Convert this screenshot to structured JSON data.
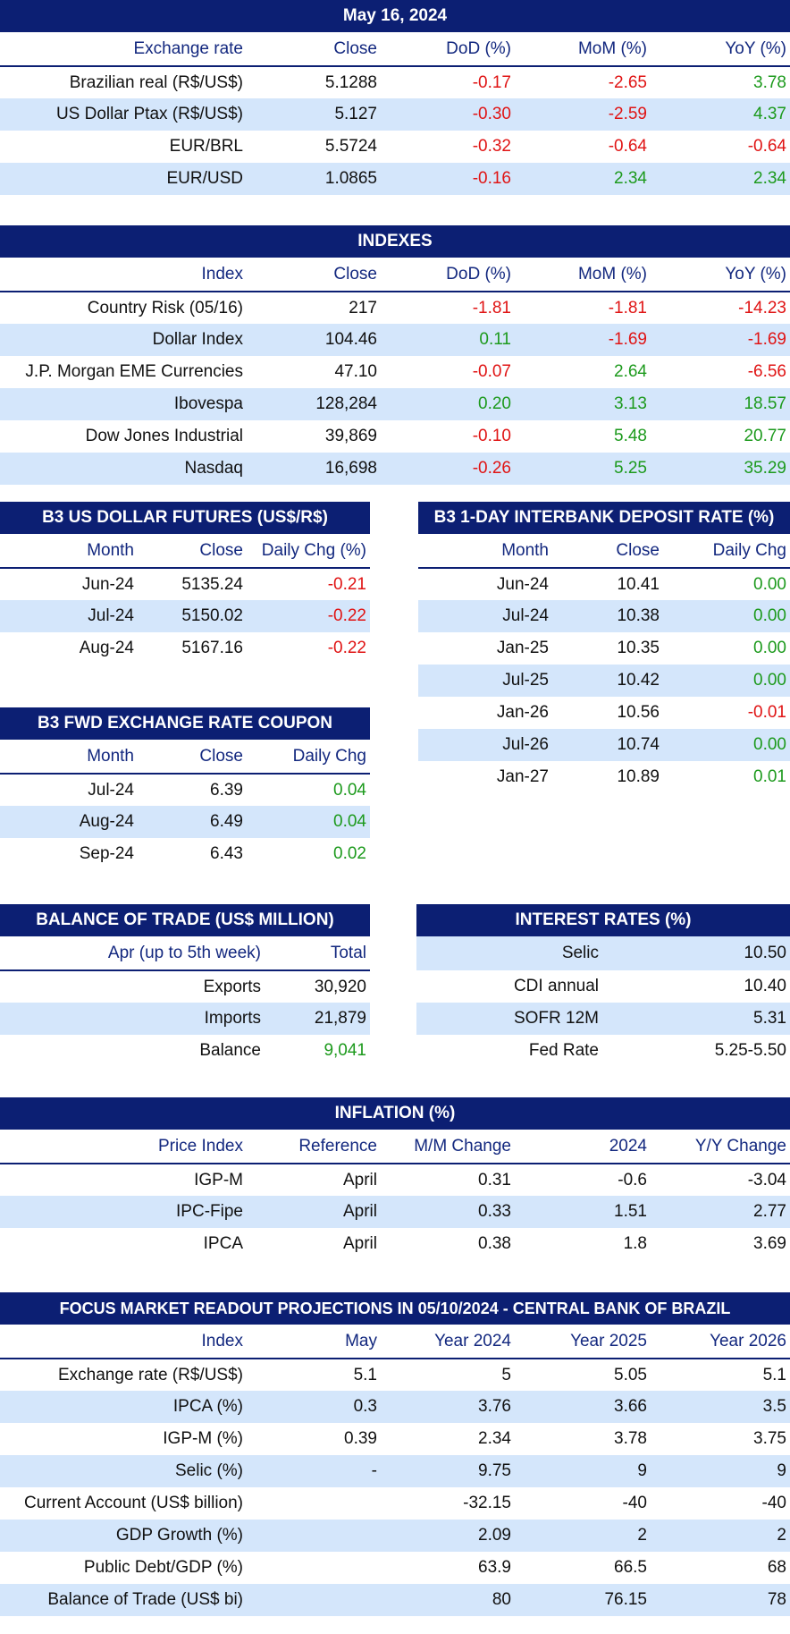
{
  "exchange": {
    "title": "May 16, 2024",
    "headers": [
      "Exchange rate",
      "Close",
      "DoD (%)",
      "MoM (%)",
      "YoY (%)"
    ],
    "rows": [
      {
        "label": "Brazilian real (R$/US$)",
        "close": "5.1288",
        "dod": "-0.17",
        "mom": "-2.65",
        "yoy": "3.78"
      },
      {
        "label": "US Dollar Ptax (R$/US$)",
        "close": "5.127",
        "dod": "-0.30",
        "mom": "-2.59",
        "yoy": "4.37"
      },
      {
        "label": "EUR/BRL",
        "close": "5.5724",
        "dod": "-0.32",
        "mom": "-0.64",
        "yoy": "-0.64"
      },
      {
        "label": "EUR/USD",
        "close": "1.0865",
        "dod": "-0.16",
        "mom": "2.34",
        "yoy": "2.34"
      }
    ]
  },
  "indexes": {
    "title": "INDEXES",
    "headers": [
      "Index",
      "Close",
      "DoD (%)",
      "MoM (%)",
      "YoY (%)"
    ],
    "rows": [
      {
        "label": "Country Risk (05/16)",
        "close": "217",
        "dod": "-1.81",
        "mom": "-1.81",
        "yoy": "-14.23"
      },
      {
        "label": "Dollar Index",
        "close": "104.46",
        "dod": "0.11",
        "mom": "-1.69",
        "yoy": "-1.69"
      },
      {
        "label": "J.P. Morgan EME Currencies",
        "close": "47.10",
        "dod": "-0.07",
        "mom": "2.64",
        "yoy": "-6.56"
      },
      {
        "label": "Ibovespa",
        "close": "128,284",
        "dod": "0.20",
        "mom": "3.13",
        "yoy": "18.57"
      },
      {
        "label": "Dow Jones Industrial",
        "close": "39,869",
        "dod": "-0.10",
        "mom": "5.48",
        "yoy": "20.77"
      },
      {
        "label": "Nasdaq",
        "close": "16,698",
        "dod": "-0.26",
        "mom": "5.25",
        "yoy": "35.29"
      }
    ]
  },
  "dollar_futures": {
    "title": "B3 US DOLLAR FUTURES (US$/R$)",
    "headers": [
      "Month",
      "Close",
      "Daily Chg (%)"
    ],
    "rows": [
      {
        "month": "Jun-24",
        "close": "5135.24",
        "chg": "-0.21"
      },
      {
        "month": "Jul-24",
        "close": "5150.02",
        "chg": "-0.22"
      },
      {
        "month": "Aug-24",
        "close": "5167.16",
        "chg": "-0.22"
      }
    ]
  },
  "interbank": {
    "title": "B3 1-DAY INTERBANK DEPOSIT RATE (%)",
    "headers": [
      "Month",
      "Close",
      "Daily Chg"
    ],
    "rows": [
      {
        "month": "Jun-24",
        "close": "10.41",
        "chg": "0.00"
      },
      {
        "month": "Jul-24",
        "close": "10.38",
        "chg": "0.00"
      },
      {
        "month": "Jan-25",
        "close": "10.35",
        "chg": "0.00"
      },
      {
        "month": "Jul-25",
        "close": "10.42",
        "chg": "0.00"
      },
      {
        "month": "Jan-26",
        "close": "10.56",
        "chg": "-0.01"
      },
      {
        "month": "Jul-26",
        "close": "10.74",
        "chg": "0.00"
      },
      {
        "month": "Jan-27",
        "close": "10.89",
        "chg": "0.01"
      }
    ]
  },
  "fwd_coupon": {
    "title": "B3 FWD EXCHANGE RATE COUPON",
    "headers": [
      "Month",
      "Close",
      "Daily Chg"
    ],
    "rows": [
      {
        "month": "Jul-24",
        "close": "6.39",
        "chg": "0.04"
      },
      {
        "month": "Aug-24",
        "close": "6.49",
        "chg": "0.04"
      },
      {
        "month": "Sep-24",
        "close": "6.43",
        "chg": "0.02"
      }
    ]
  },
  "trade": {
    "title": "BALANCE OF TRADE (US$ MILLION)",
    "headers": [
      "Apr (up to 5th week)",
      "Total"
    ],
    "rows": [
      {
        "label": "Exports",
        "value": "30,920"
      },
      {
        "label": "Imports",
        "value": "21,879"
      },
      {
        "label": "Balance",
        "value": "9,041"
      }
    ]
  },
  "interest": {
    "title": "INTEREST RATES (%)",
    "rows": [
      {
        "label": "Selic",
        "value": "10.50"
      },
      {
        "label": "CDI annual",
        "value": "10.40"
      },
      {
        "label": "SOFR 12M",
        "value": "5.31"
      },
      {
        "label": "Fed Rate",
        "value": "5.25-5.50"
      }
    ]
  },
  "inflation": {
    "title": "INFLATION (%)",
    "headers": [
      "Price Index",
      "Reference",
      "M/M Change",
      "2024",
      "Y/Y Change"
    ],
    "rows": [
      {
        "label": "IGP-M",
        "ref": "April",
        "mm": "0.31",
        "ytd": "-0.6",
        "yy": "-3.04"
      },
      {
        "label": "IPC-Fipe",
        "ref": "April",
        "mm": "0.33",
        "ytd": "1.51",
        "yy": "2.77"
      },
      {
        "label": "IPCA",
        "ref": "April",
        "mm": "0.38",
        "ytd": "1.8",
        "yy": "3.69"
      }
    ]
  },
  "focus": {
    "title": "FOCUS MARKET READOUT PROJECTIONS IN 05/10/2024 - CENTRAL BANK OF BRAZIL",
    "headers": [
      "Index",
      "May",
      "Year 2024",
      "Year 2025",
      "Year 2026"
    ],
    "rows": [
      {
        "label": "Exchange rate (R$/US$)",
        "may": "5.1",
        "y24": "5",
        "y25": "5.05",
        "y26": "5.1"
      },
      {
        "label": "IPCA (%)",
        "may": "0.3",
        "y24": "3.76",
        "y25": "3.66",
        "y26": "3.5"
      },
      {
        "label": "IGP-M (%)",
        "may": "0.39",
        "y24": "2.34",
        "y25": "3.78",
        "y26": "3.75"
      },
      {
        "label": "Selic (%)",
        "may": "-",
        "y24": "9.75",
        "y25": "9",
        "y26": "9"
      },
      {
        "label": "Current Account (US$ billion)",
        "may": "",
        "y24": "-32.15",
        "y25": "-40",
        "y26": "-40"
      },
      {
        "label": "GDP Growth (%)",
        "may": "",
        "y24": "2.09",
        "y25": "2",
        "y26": "2"
      },
      {
        "label": "Public Debt/GDP (%)",
        "may": "",
        "y24": "63.9",
        "y25": "66.5",
        "y26": "68"
      },
      {
        "label": "Balance of Trade (US$ bi)",
        "may": "",
        "y24": "80",
        "y25": "76.15",
        "y26": "78"
      }
    ]
  },
  "colors": {
    "header_bg": "#0c1f73",
    "row_shade": "#d4e6fb",
    "negative": "#e01414",
    "positive": "#1d9a1d"
  }
}
